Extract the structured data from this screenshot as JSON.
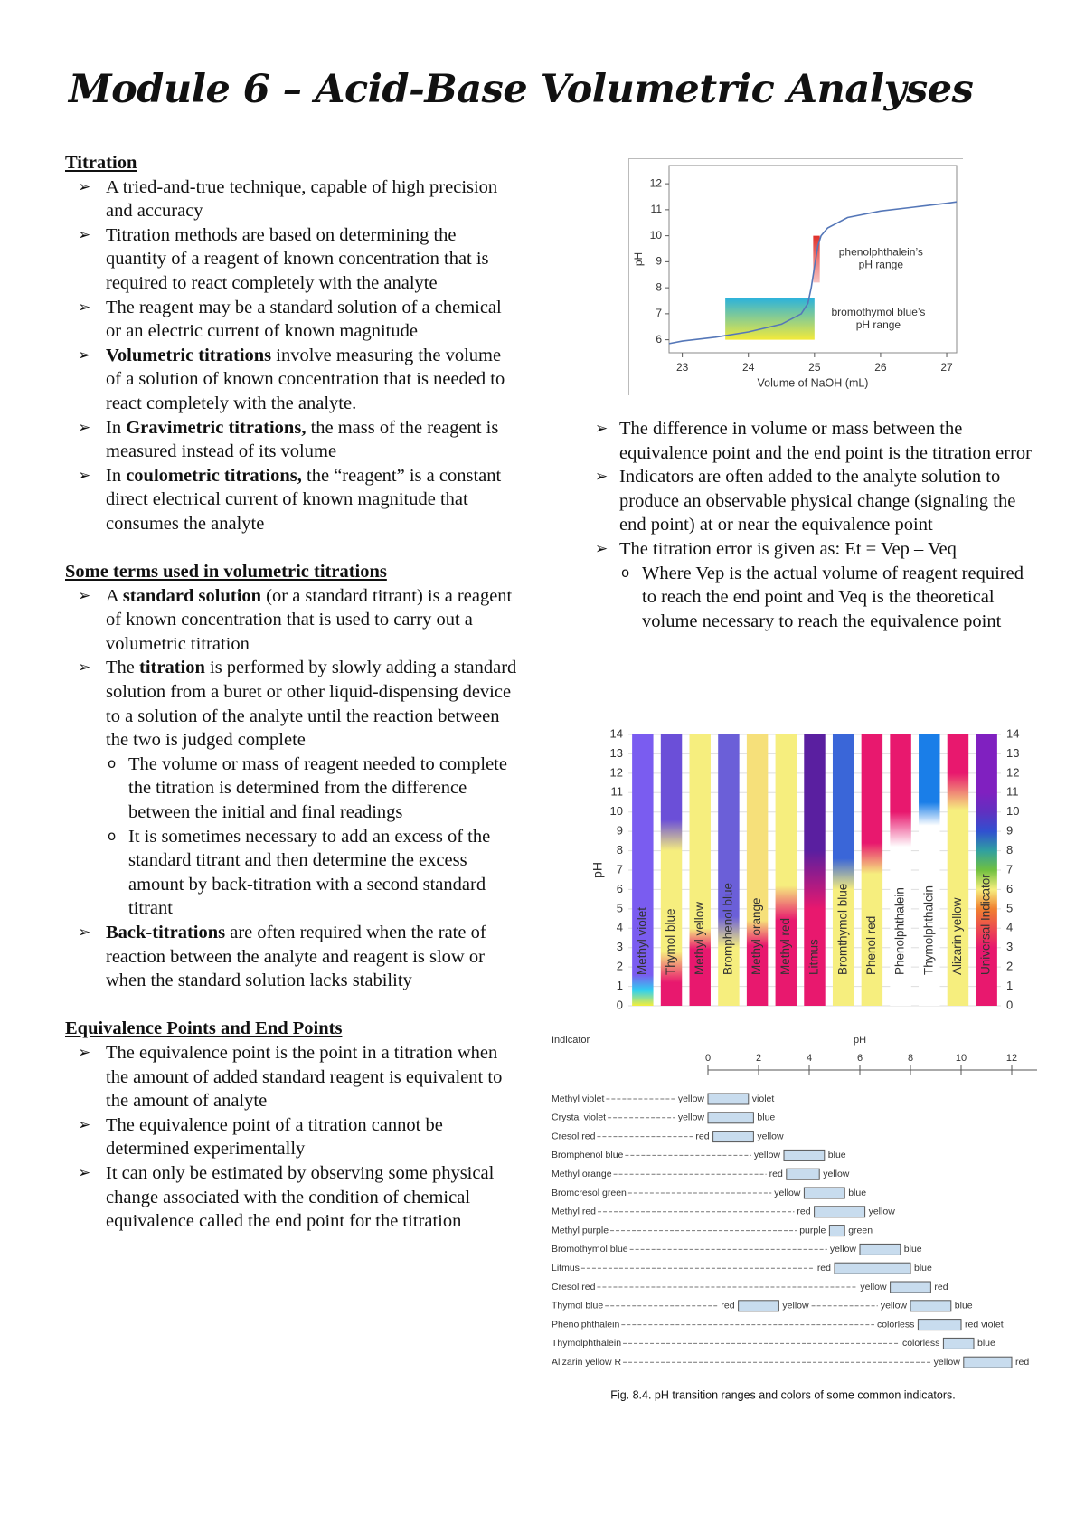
{
  "title": "Module 6 – Acid-Base Volumetric Analyses",
  "sections": [
    {
      "heading": "Titration",
      "items": [
        {
          "parts": [
            "A tried-and-true technique, capable of high precision and accuracy"
          ]
        },
        {
          "parts": [
            "Titration methods are based on determining the quantity of a reagent of known concentration that is required to react completely with the analyte"
          ]
        },
        {
          "parts": [
            "The reagent may be a standard solution of a chemical or an electric current of known magnitude"
          ]
        },
        {
          "parts": [
            {
              "bold": "Volumetric titrations"
            },
            " involve measuring the volume of a solution of known concentration that is needed to react completely with the analyte."
          ]
        },
        {
          "parts": [
            "In ",
            {
              "bold": "Gravimetric titrations,"
            },
            " the mass of the reagent is measured instead of its volume"
          ]
        },
        {
          "parts": [
            "In ",
            {
              "bold": "coulometric titrations,"
            },
            " the “reagent” is a constant direct electrical current of known magnitude that consumes the analyte"
          ]
        }
      ]
    },
    {
      "heading": "Some terms used in volumetric titrations",
      "items": [
        {
          "parts": [
            "A ",
            {
              "bold": "standard solution"
            },
            " (or a standard titrant) is a reagent of known concentration that is used to carry out a volumetric titration"
          ]
        },
        {
          "parts": [
            "The ",
            {
              "bold": "titration"
            },
            " is performed by slowly adding a standard solution from a buret or other liquid-dispensing device to a solution of the analyte until the reaction between the two is judged complete"
          ],
          "sub": [
            "The volume or mass of reagent needed to complete the titration is determined from the difference between the initial and final readings",
            "It is sometimes necessary to add an excess of the standard titrant and then determine the excess amount by back-titration with a second standard titrant"
          ]
        },
        {
          "parts": [
            {
              "bold": "Back-titrations"
            },
            " are often required when the rate of reaction between the analyte and reagent is slow or when the standard solution lacks stability"
          ]
        }
      ]
    },
    {
      "heading": "Equivalence Points and End Points",
      "items": [
        {
          "parts": [
            "The equivalence point is the point in a titration when the amount of added standard reagent is equivalent to the amount of analyte"
          ]
        },
        {
          "parts": [
            "The equivalence point of a titration cannot be determined experimentally"
          ]
        },
        {
          "parts": [
            "It can only be estimated by observing some physical change associated with the condition of chemical equivalence called the end point for the titration"
          ]
        }
      ]
    }
  ],
  "right_items": [
    {
      "parts": [
        "The difference in volume or mass between the equivalence point and the end point is the titration error"
      ]
    },
    {
      "parts": [
        "Indicators are often added to the analyte solution to produce an observable physical change (signaling the end point) at or near the equivalence point"
      ]
    },
    {
      "parts": [
        "The titration error is given as: Et = Vep – Veq"
      ],
      "sub": [
        "Where Vep is the actual volume of reagent required to reach the end point and Veq is the theoretical volume necessary to reach the equivalence point"
      ]
    }
  ],
  "chart_data": [
    {
      "type": "line",
      "x_label": "Volume of NaOH (mL)",
      "y_label": "pH",
      "xlim": [
        22.8,
        27.15
      ],
      "ylim": [
        5.5,
        12.7
      ],
      "xticks": [
        23,
        24,
        25,
        26,
        27
      ],
      "yticks": [
        6,
        7,
        8,
        9,
        10,
        11,
        12
      ],
      "series": [
        {
          "color": "#5577b8",
          "x": [
            22.8,
            23,
            23.5,
            24,
            24.5,
            24.8,
            24.9,
            24.95,
            25,
            25.05,
            25.1,
            25.2,
            25.5,
            26,
            26.5,
            27,
            27.15
          ],
          "values": [
            5.85,
            5.95,
            6.1,
            6.3,
            6.6,
            7.0,
            7.4,
            8.0,
            8.8,
            9.6,
            10.0,
            10.3,
            10.7,
            10.95,
            11.1,
            11.25,
            11.3
          ]
        }
      ],
      "ranges": [
        {
          "label": [
            "phenolphthalein’s",
            "pH range"
          ],
          "x": [
            24.98,
            25.08
          ],
          "ph": [
            8.2,
            10.0
          ],
          "colors": [
            "#f7c4c4",
            "#e0302a"
          ]
        },
        {
          "label": [
            "bromothymol blue’s",
            "pH range"
          ],
          "x": [
            23.65,
            25.0
          ],
          "ph": [
            6.0,
            7.6
          ],
          "colors": [
            "#f3ea3a",
            "#2bb2dc"
          ]
        }
      ]
    },
    {
      "type": "indicator-columns",
      "y_label": "pH",
      "ylim": [
        0,
        14
      ],
      "yticks": [
        0,
        1,
        2,
        3,
        4,
        5,
        6,
        7,
        8,
        9,
        10,
        11,
        12,
        13,
        14
      ],
      "grid": true,
      "right_axis": true,
      "indicators": [
        {
          "name": "Methyl violet",
          "stops": [
            0,
            0.8,
            1.6
          ],
          "colors": [
            "#f4ef3a",
            "#2fd0f0",
            "#7a5cf0"
          ]
        },
        {
          "name": "Thymol blue",
          "stops": [
            1.2,
            2.8,
            8.0,
            9.6
          ],
          "colors": [
            "#e8186e",
            "#f6ee7e",
            "#f6ee7e",
            "#6b4fd8"
          ]
        },
        {
          "name": "Methyl yellow",
          "stops": [
            2.9,
            4.0
          ],
          "colors": [
            "#e8186e",
            "#f6ee7e"
          ]
        },
        {
          "name": "Bromphenol blue",
          "stops": [
            3.0,
            4.6
          ],
          "colors": [
            "#f6ee7e",
            "#6b5fd8"
          ]
        },
        {
          "name": "Methyl orange",
          "stops": [
            3.1,
            4.4
          ],
          "colors": [
            "#e8186e",
            "#f6e07a"
          ]
        },
        {
          "name": "Methyl red",
          "stops": [
            4.4,
            6.2
          ],
          "colors": [
            "#e8186e",
            "#f6ee7e"
          ]
        },
        {
          "name": "Litmus",
          "stops": [
            5.0,
            8.0
          ],
          "colors": [
            "#e8186e",
            "#5a1fa0"
          ]
        },
        {
          "name": "Bromthymol blue",
          "stops": [
            6.0,
            7.6
          ],
          "colors": [
            "#f6ee7e",
            "#3a66d8"
          ]
        },
        {
          "name": "Phenol red",
          "stops": [
            6.8,
            8.4
          ],
          "colors": [
            "#f6ee7e",
            "#e8186e"
          ]
        },
        {
          "name": "Phenolphthalein",
          "stops": [
            8.2,
            10.0
          ],
          "colors": [
            "#ffffff",
            "#e8186e"
          ]
        },
        {
          "name": "Thymolphthalein",
          "stops": [
            9.3,
            10.5
          ],
          "colors": [
            "#ffffff",
            "#1a7ee8"
          ]
        },
        {
          "name": "Alizarin yellow",
          "stops": [
            10.1,
            12.0
          ],
          "colors": [
            "#f6ee7e",
            "#e8186e"
          ]
        },
        {
          "name": "Universal Indicator",
          "stops": [
            3,
            5,
            6,
            7,
            8,
            9,
            10,
            11
          ],
          "colors": [
            "#e8186e",
            "#f08030",
            "#f6ee7e",
            "#70c040",
            "#30a0a0",
            "#3050d0",
            "#6030c0",
            "#8020c0"
          ]
        }
      ]
    },
    {
      "type": "range-diagram",
      "header": "Indicator",
      "x_label": "pH",
      "xlim": [
        0,
        13
      ],
      "xticks": [
        0,
        2,
        4,
        6,
        8,
        10,
        12
      ],
      "box_color": "#c8dcee",
      "caption": "Fig. 8.4. pH transition ranges and colors of some common indicators.",
      "indicators": [
        {
          "name": "Methyl violet",
          "ranges": [
            {
              "from": 0.0,
              "to": 1.6,
              "low": "yellow",
              "high": "violet"
            }
          ]
        },
        {
          "name": "Crystal violet",
          "ranges": [
            {
              "from": 0.0,
              "to": 1.8,
              "low": "yellow",
              "high": "blue"
            }
          ]
        },
        {
          "name": "Cresol red",
          "ranges": [
            {
              "from": 0.2,
              "to": 1.8,
              "low": "red",
              "high": "yellow"
            }
          ]
        },
        {
          "name": "Bromphenol blue",
          "ranges": [
            {
              "from": 3.0,
              "to": 4.6,
              "low": "yellow",
              "high": "blue"
            }
          ]
        },
        {
          "name": "Methyl orange",
          "ranges": [
            {
              "from": 3.1,
              "to": 4.4,
              "low": "red",
              "high": "yellow"
            }
          ]
        },
        {
          "name": "Bromcresol green",
          "ranges": [
            {
              "from": 3.8,
              "to": 5.4,
              "low": "yellow",
              "high": "blue"
            }
          ]
        },
        {
          "name": "Methyl red",
          "ranges": [
            {
              "from": 4.2,
              "to": 6.2,
              "low": "red",
              "high": "yellow"
            }
          ]
        },
        {
          "name": "Methyl purple",
          "ranges": [
            {
              "from": 4.8,
              "to": 5.4,
              "low": "purple",
              "high": "green"
            }
          ]
        },
        {
          "name": "Bromothymol blue",
          "ranges": [
            {
              "from": 6.0,
              "to": 7.6,
              "low": "yellow",
              "high": "blue"
            }
          ]
        },
        {
          "name": "Litmus",
          "ranges": [
            {
              "from": 5.0,
              "to": 8.0,
              "low": "red",
              "high": "blue"
            }
          ]
        },
        {
          "name": "Cresol red",
          "ranges": [
            {
              "from": 7.2,
              "to": 8.8,
              "low": "yellow",
              "high": "red"
            }
          ]
        },
        {
          "name": "Thymol blue",
          "ranges": [
            {
              "from": 1.2,
              "to": 2.8,
              "low": "red",
              "high": "yellow"
            },
            {
              "from": 8.0,
              "to": 9.6,
              "low": "yellow",
              "high": "blue"
            }
          ]
        },
        {
          "name": "Phenolphthalein",
          "ranges": [
            {
              "from": 8.3,
              "to": 10.0,
              "low": "colorless",
              "high": "red violet"
            }
          ]
        },
        {
          "name": "Thymolphthalein",
          "ranges": [
            {
              "from": 9.3,
              "to": 10.5,
              "low": "colorless",
              "high": "blue"
            }
          ]
        },
        {
          "name": "Alizarin yellow R",
          "ranges": [
            {
              "from": 10.1,
              "to": 12.0,
              "low": "yellow",
              "high": "red"
            }
          ]
        }
      ]
    }
  ]
}
